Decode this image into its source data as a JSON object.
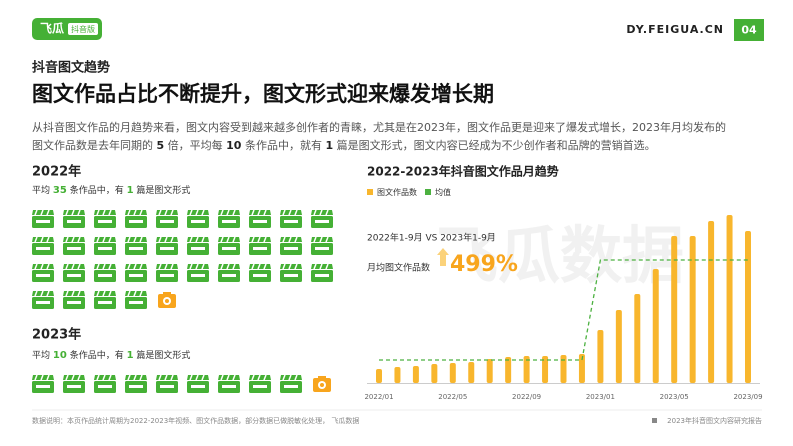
{
  "header": {
    "logo": "飞瓜",
    "logo_badge": "抖音版",
    "site": "DY.FEIGUA.CN",
    "page": "04"
  },
  "section_label": "抖音图文趋势",
  "title": "图文作品占比不断提升，图文形式迎来爆发增长期",
  "paragraph": [
    [
      {
        "text": "从抖音图文作品的月趋势来看，图文内容受到越来越多创作者的青睐，尤其是在2023年，图文作品更是迎来了爆发式增长，2023年月均发布的"
      }
    ],
    [
      {
        "text": "图文作品数是去年同期的 "
      },
      {
        "text": "5",
        "bold": true
      },
      {
        "text": " 倍，平均每 "
      },
      {
        "text": "10",
        "bold": true
      },
      {
        "text": " 条作品中，就有 "
      },
      {
        "text": "1",
        "bold": true
      },
      {
        "text": " 篇是图文形式，图文内容已经成为不少创作者和品牌的营销首选。"
      }
    ]
  ],
  "years": [
    {
      "label": "2022年",
      "prefix": "平均",
      "total": 35,
      "mid": "条作品中，有",
      "count": 1,
      "suffix": "篇是图文形式"
    },
    {
      "label": "2023年",
      "prefix": "平均",
      "total": 10,
      "mid": "条作品中，有",
      "count": 1,
      "suffix": "篇是图文形式"
    }
  ],
  "watermark": "飞瓜数据",
  "chart_data": {
    "type": "bar",
    "title": "2022-2023年抖音图文作品月趋势",
    "categories": [
      "2022/01",
      null,
      null,
      null,
      "2022/05",
      null,
      null,
      null,
      "2022/09",
      null,
      null,
      null,
      "2023/01",
      null,
      null,
      null,
      "2023/05",
      null,
      null,
      null,
      "2023/09"
    ],
    "series": [
      {
        "name": "图文作品数",
        "color": "#f8b62d",
        "values": [
          14,
          16,
          17,
          19,
          20,
          21,
          24,
          26,
          27,
          27,
          28,
          29,
          53,
          73,
          89,
          114,
          147,
          147,
          162,
          168,
          152
        ]
      },
      {
        "name": "均值",
        "color": "#4cb140",
        "type": "line",
        "values": [
          23,
          23,
          23,
          23,
          23,
          23,
          23,
          23,
          23,
          23,
          23,
          23,
          123,
          123,
          123,
          123,
          123,
          123,
          123,
          123,
          123
        ]
      }
    ],
    "ylim": [
      0,
      175
    ],
    "annotations": {
      "comparison": "2022年1-9月 VS 2023年1-9月",
      "metric": "月均图文作品数",
      "growth": "499%"
    }
  },
  "footer": {
    "note": "数据说明：本页作品统计周期为2022-2023年视频、图文作品数据，部分数据已做脱敏化处理， 飞瓜数据",
    "report": "2023年抖音图文内容研究报告"
  }
}
